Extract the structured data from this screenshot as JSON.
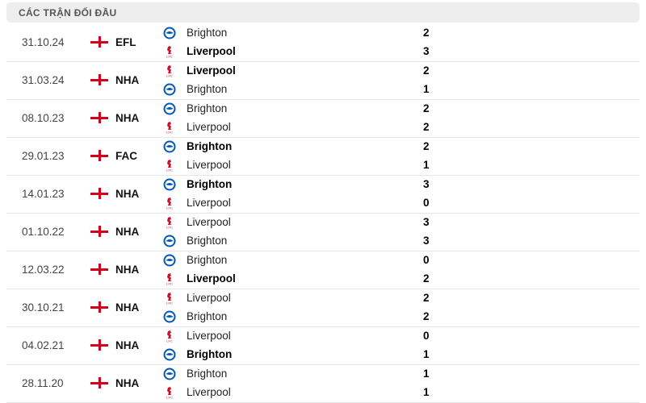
{
  "header": {
    "title": "CÁC TRẬN ĐỐI ĐẦU"
  },
  "colors": {
    "brighton": "#0057b8",
    "liverpool": "#c8102e",
    "flag": "#d0021b"
  },
  "matches": [
    {
      "date": "31.10.24",
      "competition": "EFL",
      "teams": [
        {
          "name": "Brighton",
          "icon": "brighton-crest",
          "score": "2",
          "winner": false
        },
        {
          "name": "Liverpool",
          "icon": "liverpool-crest",
          "score": "3",
          "winner": true
        }
      ]
    },
    {
      "date": "31.03.24",
      "competition": "NHA",
      "teams": [
        {
          "name": "Liverpool",
          "icon": "liverpool-crest",
          "score": "2",
          "winner": true
        },
        {
          "name": "Brighton",
          "icon": "brighton-crest",
          "score": "1",
          "winner": false
        }
      ]
    },
    {
      "date": "08.10.23",
      "competition": "NHA",
      "teams": [
        {
          "name": "Brighton",
          "icon": "brighton-crest",
          "score": "2",
          "winner": false
        },
        {
          "name": "Liverpool",
          "icon": "liverpool-crest",
          "score": "2",
          "winner": false
        }
      ]
    },
    {
      "date": "29.01.23",
      "competition": "FAC",
      "teams": [
        {
          "name": "Brighton",
          "icon": "brighton-crest",
          "score": "2",
          "winner": true
        },
        {
          "name": "Liverpool",
          "icon": "liverpool-crest",
          "score": "1",
          "winner": false
        }
      ]
    },
    {
      "date": "14.01.23",
      "competition": "NHA",
      "teams": [
        {
          "name": "Brighton",
          "icon": "brighton-crest",
          "score": "3",
          "winner": true
        },
        {
          "name": "Liverpool",
          "icon": "liverpool-crest",
          "score": "0",
          "winner": false
        }
      ]
    },
    {
      "date": "01.10.22",
      "competition": "NHA",
      "teams": [
        {
          "name": "Liverpool",
          "icon": "liverpool-crest",
          "score": "3",
          "winner": false
        },
        {
          "name": "Brighton",
          "icon": "brighton-crest",
          "score": "3",
          "winner": false
        }
      ]
    },
    {
      "date": "12.03.22",
      "competition": "NHA",
      "teams": [
        {
          "name": "Brighton",
          "icon": "brighton-crest",
          "score": "0",
          "winner": false
        },
        {
          "name": "Liverpool",
          "icon": "liverpool-crest",
          "score": "2",
          "winner": true
        }
      ]
    },
    {
      "date": "30.10.21",
      "competition": "NHA",
      "teams": [
        {
          "name": "Liverpool",
          "icon": "liverpool-crest",
          "score": "2",
          "winner": false
        },
        {
          "name": "Brighton",
          "icon": "brighton-crest",
          "score": "2",
          "winner": false
        }
      ]
    },
    {
      "date": "04.02.21",
      "competition": "NHA",
      "teams": [
        {
          "name": "Liverpool",
          "icon": "liverpool-crest",
          "score": "0",
          "winner": false
        },
        {
          "name": "Brighton",
          "icon": "brighton-crest",
          "score": "1",
          "winner": true
        }
      ]
    },
    {
      "date": "28.11.20",
      "competition": "NHA",
      "teams": [
        {
          "name": "Brighton",
          "icon": "brighton-crest",
          "score": "1",
          "winner": false
        },
        {
          "name": "Liverpool",
          "icon": "liverpool-crest",
          "score": "1",
          "winner": false
        }
      ]
    }
  ]
}
